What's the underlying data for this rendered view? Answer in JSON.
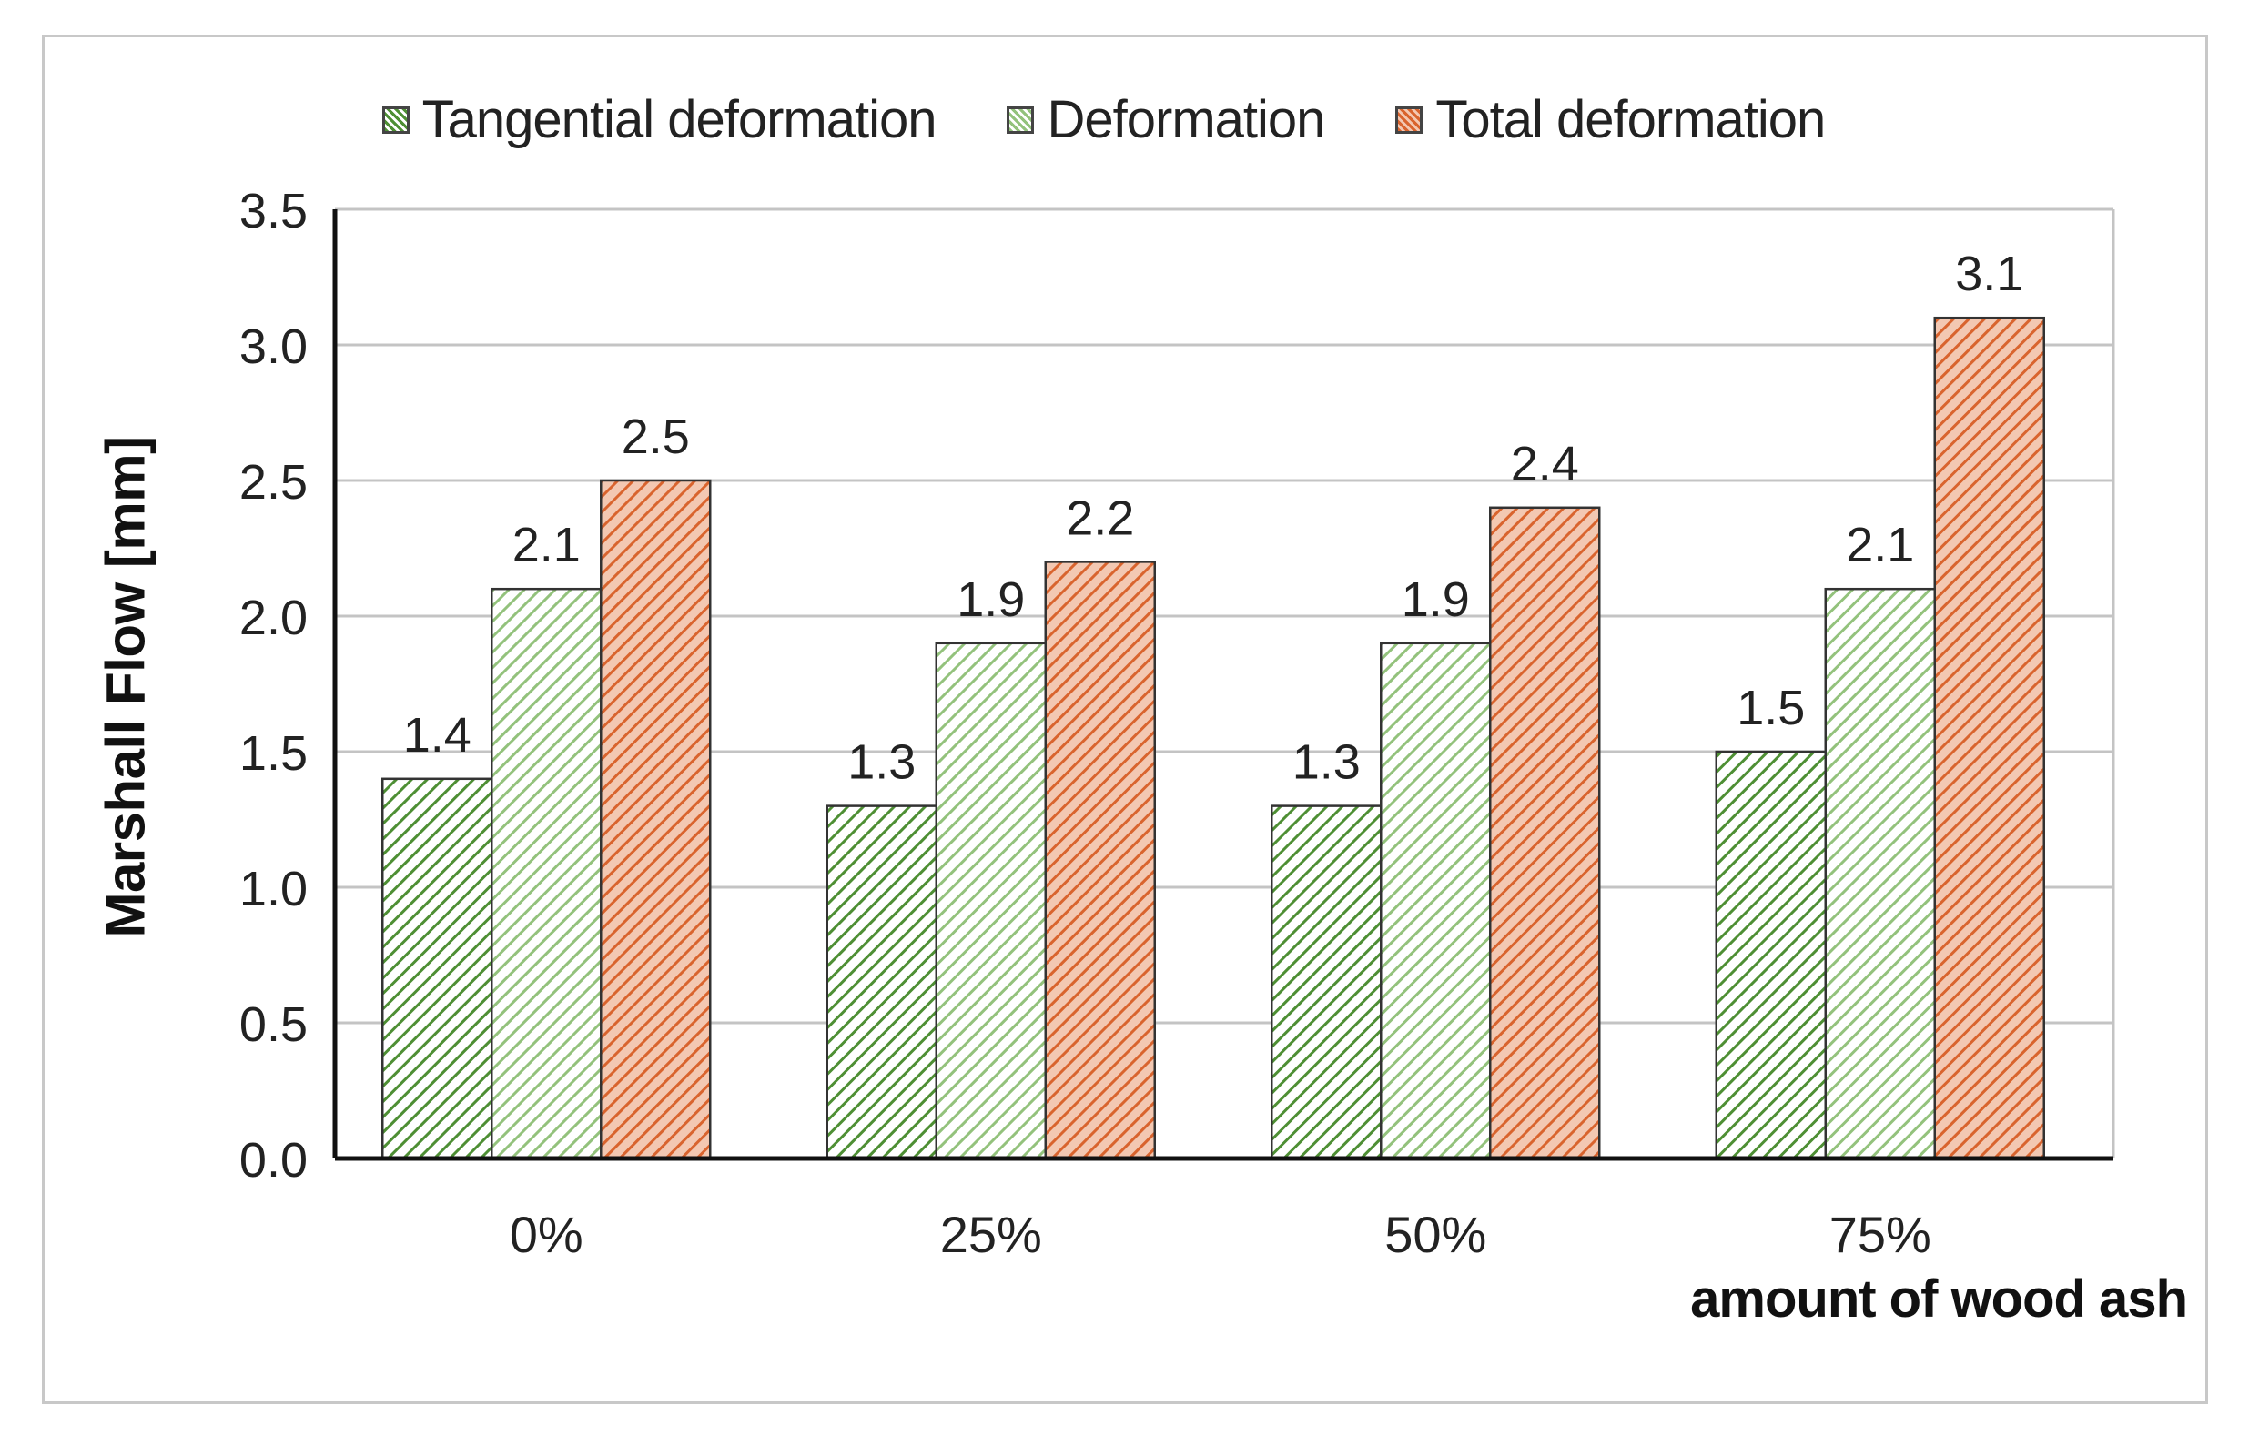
{
  "chart_data": {
    "type": "bar",
    "title": "",
    "xlabel": "amount of wood ash",
    "ylabel": "Marshall Flow   [mm]",
    "categories": [
      "0%",
      "25%",
      "50%",
      "75%"
    ],
    "ylim": [
      0,
      3.5
    ],
    "y_ticks": [
      "0.0",
      "0.5",
      "1.0",
      "1.5",
      "2.0",
      "2.5",
      "3.0",
      "3.5"
    ],
    "grid": true,
    "legend_position": "top",
    "series": [
      {
        "name": "Tangential deformation",
        "values": [
          1.4,
          1.3,
          1.3,
          1.5
        ],
        "labels": [
          "1.4",
          "1.3",
          "1.3",
          "1.5"
        ],
        "color": "#4e8f34",
        "fill": "#ffffff"
      },
      {
        "name": "Deformation",
        "values": [
          2.1,
          1.9,
          1.9,
          2.1
        ],
        "labels": [
          "2.1",
          "1.9",
          "1.9",
          "2.1"
        ],
        "color": "#93c27c",
        "fill": "#ffffff"
      },
      {
        "name": "Total deformation",
        "values": [
          2.5,
          2.2,
          2.4,
          3.1
        ],
        "labels": [
          "2.5",
          "2.2",
          "2.4",
          "3.1"
        ],
        "color": "#d9642e",
        "fill": "#f3c8b2"
      }
    ]
  }
}
